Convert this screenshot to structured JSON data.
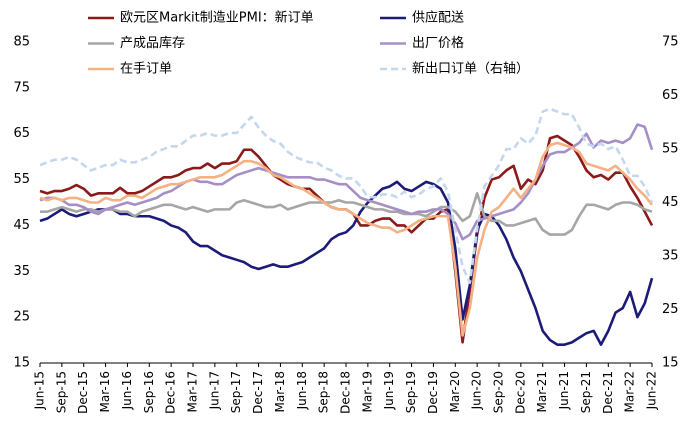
{
  "chart_data": {
    "type": "line",
    "categories": [
      "Jun-15",
      null,
      null,
      "Sep-15",
      null,
      null,
      "Dec-15",
      null,
      null,
      "Mar-16",
      null,
      null,
      "Jun-16",
      null,
      null,
      "Sep-16",
      null,
      null,
      "Dec-16",
      null,
      null,
      "Mar-17",
      null,
      null,
      "Jun-17",
      null,
      null,
      "Sep-17",
      null,
      null,
      "Dec-17",
      null,
      null,
      "Mar-18",
      null,
      null,
      "Jun-18",
      null,
      null,
      "Sep-18",
      null,
      null,
      "Dec-18",
      null,
      null,
      "Mar-19",
      null,
      null,
      "Jun-19",
      null,
      null,
      "Sep-19",
      null,
      null,
      "Dec-19",
      null,
      null,
      "Mar-20",
      null,
      null,
      "Jun-20",
      null,
      null,
      "Sep-20",
      null,
      null,
      "Dec-20",
      null,
      null,
      "Mar-21",
      null,
      null,
      "Jun-21",
      null,
      null,
      "Sep-21",
      null,
      null,
      "Dec-21",
      null,
      null,
      "Mar-22",
      null,
      null,
      "Jun-22"
    ],
    "ylim": [
      15,
      85
    ],
    "yticks": [
      15,
      25,
      35,
      45,
      55,
      65,
      75,
      85
    ],
    "y2lim": [
      15,
      75
    ],
    "y2ticks": [
      15,
      25,
      35,
      45,
      55,
      65,
      75
    ],
    "series": [
      {
        "name": "欧元区Markit制造业PMI：新订单",
        "color": "#8b1a1a",
        "values": [
          52.5,
          52,
          52.5,
          52.5,
          53,
          53.8,
          53,
          51.5,
          52,
          52,
          52,
          53.2,
          52,
          52,
          52.5,
          53.5,
          54.5,
          55.5,
          55.5,
          56,
          57,
          57.5,
          57.5,
          58.5,
          57.5,
          58.5,
          58.5,
          59,
          61.5,
          61.5,
          60,
          58,
          56,
          55,
          54,
          53.5,
          53,
          53,
          51.5,
          50,
          49,
          48.5,
          48.5,
          47.5,
          45,
          45,
          46,
          46.5,
          46.5,
          45,
          45,
          43.5,
          45,
          46.5,
          46.5,
          48,
          48.5,
          35,
          19.5,
          31,
          43,
          51,
          55,
          55.5,
          57,
          58,
          53,
          55,
          54,
          57,
          64,
          64.5,
          63.5,
          62.5,
          60,
          57,
          55.5,
          56,
          55,
          56.5,
          56.5,
          53.5,
          51,
          48,
          45
        ]
      },
      {
        "name": "供应配送",
        "color": "#1c1c78",
        "values": [
          46,
          46.5,
          47.5,
          48.5,
          47.5,
          47,
          47.5,
          48,
          48.5,
          48.5,
          48.5,
          47.5,
          47.5,
          47,
          47,
          47,
          46.5,
          46,
          45,
          44.5,
          43.5,
          41.5,
          40.5,
          40.5,
          39.5,
          38.5,
          38,
          37.5,
          37,
          36,
          35.5,
          36,
          36.5,
          36,
          36,
          36.5,
          37,
          38,
          39,
          40,
          42,
          43,
          43.5,
          45,
          48,
          50,
          51.5,
          53,
          53.5,
          54.5,
          53,
          52.5,
          53.5,
          54.5,
          54,
          53,
          50,
          40,
          24.5,
          32,
          44,
          47.5,
          47,
          45,
          42,
          38,
          35,
          31,
          27,
          22,
          20,
          19,
          19,
          19.5,
          20.5,
          21.5,
          22,
          19,
          22,
          26,
          27,
          30.5,
          25,
          28,
          33.5
        ]
      },
      {
        "name": "产成品库存",
        "color": "#a6a6a6",
        "values": [
          48,
          48,
          48.5,
          49,
          48.5,
          48,
          48.5,
          48.5,
          48,
          48.5,
          48.5,
          48,
          48,
          47,
          48,
          48.5,
          49,
          49.5,
          49.5,
          49,
          48.5,
          49,
          48.5,
          48,
          48.5,
          48.5,
          48.5,
          50,
          50.5,
          50,
          49.5,
          49,
          49,
          49.5,
          48.5,
          49,
          49.5,
          50,
          50,
          50,
          50,
          50.5,
          50,
          50,
          49.5,
          49,
          48.5,
          48.5,
          48,
          48,
          47.5,
          47.5,
          47.5,
          47,
          48,
          49,
          49,
          48,
          46,
          47,
          52,
          47,
          46,
          46,
          45,
          45,
          45.5,
          46,
          46.5,
          44,
          43,
          43,
          43,
          44,
          47,
          49.5,
          49.5,
          49,
          48.5,
          49.5,
          50,
          50,
          49.5,
          48.5,
          48
        ]
      },
      {
        "name": "出厂价格",
        "color": "#a58fc6",
        "values": [
          50.5,
          51,
          51,
          50.5,
          49.5,
          49.5,
          49,
          48,
          47.5,
          48.5,
          49,
          49.5,
          50,
          49.5,
          50,
          50.5,
          51,
          52,
          52.5,
          53.5,
          54.5,
          55,
          54.5,
          54.5,
          54,
          54,
          55,
          56,
          56.5,
          57,
          57.5,
          57,
          56.5,
          56,
          55.5,
          55.5,
          55.5,
          55.5,
          55,
          55,
          54.5,
          54,
          54,
          52.5,
          51,
          50.5,
          50,
          49.5,
          49,
          48.5,
          48,
          47.5,
          48,
          48,
          48.5,
          48.5,
          47.5,
          45.5,
          42,
          43,
          46,
          46.5,
          47,
          47.5,
          48,
          48.5,
          50,
          52,
          55,
          58,
          60.5,
          61,
          61,
          62,
          63,
          65,
          62,
          63.5,
          63,
          63.5,
          63,
          64,
          67,
          66.5,
          61.5
        ]
      },
      {
        "name": "在手订单",
        "color": "#f4b183",
        "values": [
          51,
          50.5,
          51,
          50.5,
          51,
          51,
          50.5,
          50,
          50,
          51,
          50.5,
          50.5,
          51.5,
          51.5,
          51,
          52,
          53,
          53.5,
          54,
          54,
          54.5,
          55,
          55.5,
          55.5,
          55.5,
          56,
          57,
          58,
          59,
          59,
          58.5,
          57.5,
          56,
          55.5,
          54.5,
          53.5,
          53,
          52,
          51,
          50,
          49,
          48.5,
          48.5,
          47.5,
          46.5,
          45.5,
          45,
          44.5,
          44.5,
          43.5,
          44,
          45,
          46,
          46.5,
          47,
          47,
          47,
          36,
          21,
          27,
          38,
          44,
          48,
          49,
          51,
          53,
          51,
          53,
          55,
          60,
          62.5,
          63,
          62.5,
          62,
          61,
          58.5,
          58,
          57.5,
          57,
          58,
          56.5,
          55,
          53,
          51.5,
          49.5
        ]
      },
      {
        "name": "新出口订单（右轴）",
        "color": "#c5d7ee",
        "axis": "y2",
        "style": "dashed",
        "values": [
          52,
          52.5,
          53,
          53,
          53.5,
          53,
          52,
          51,
          51.5,
          52,
          52,
          53,
          52.5,
          52.5,
          53,
          53.5,
          54.5,
          55,
          55.5,
          55.5,
          56.5,
          57.5,
          57.5,
          58,
          57.5,
          57.5,
          58,
          58,
          59.5,
          61,
          59,
          57.5,
          56.5,
          56,
          54.5,
          53.5,
          53,
          52.5,
          52.5,
          51.5,
          51,
          50,
          49.5,
          49.5,
          48,
          46,
          46,
          46.5,
          46.5,
          46,
          47,
          46,
          46.5,
          47.5,
          48,
          49.5,
          47,
          40,
          33,
          30,
          40,
          48,
          50,
          52,
          55,
          55,
          57,
          56,
          57.5,
          62,
          62.5,
          62,
          61.5,
          61.5,
          59,
          56,
          55.5,
          56,
          55,
          55.5,
          53,
          50,
          50,
          48,
          45
        ]
      }
    ]
  }
}
